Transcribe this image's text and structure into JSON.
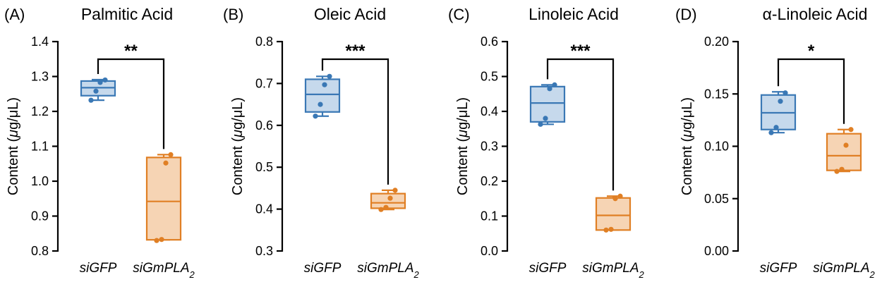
{
  "chart_data": [
    {
      "type": "box",
      "panel_label": "(A)",
      "title": "Palmitic Acid",
      "ylabel": "Content (μg/μL)",
      "ylim": [
        0.8,
        1.4
      ],
      "yticks": [
        0.8,
        0.9,
        1.0,
        1.1,
        1.2,
        1.3,
        1.4
      ],
      "ytick_labels": [
        "0.8",
        "0.9",
        "1.0",
        "1.1",
        "1.2",
        "1.3",
        "1.4"
      ],
      "categories": [
        "siGFP",
        "siGmPLA2"
      ],
      "series": [
        {
          "category": "siGFP",
          "color": "#3a78b5",
          "fill": "#c6d9ec",
          "min": 1.232,
          "q1": 1.245,
          "median": 1.268,
          "q3": 1.287,
          "max": 1.291,
          "points": [
            1.232,
            1.258,
            1.283,
            1.29
          ]
        },
        {
          "category": "siGmPLA2",
          "color": "#e07f24",
          "fill": "#f6d4b4",
          "min": 0.832,
          "q1": 0.832,
          "median": 0.942,
          "q3": 1.068,
          "max": 1.076,
          "points": [
            0.83,
            0.833,
            1.052,
            1.076
          ]
        }
      ],
      "significance": "**"
    },
    {
      "type": "box",
      "panel_label": "(B)",
      "title": "Oleic Acid",
      "ylabel": "Content (μg/μL)",
      "ylim": [
        0.3,
        0.8
      ],
      "yticks": [
        0.3,
        0.4,
        0.5,
        0.6,
        0.7,
        0.8
      ],
      "ytick_labels": [
        "0.3",
        "0.4",
        "0.5",
        "0.6",
        "0.7",
        "0.8"
      ],
      "categories": [
        "siGFP",
        "siGmPLA2"
      ],
      "series": [
        {
          "category": "siGFP",
          "color": "#3a78b5",
          "fill": "#c6d9ec",
          "min": 0.622,
          "q1": 0.632,
          "median": 0.674,
          "q3": 0.71,
          "max": 0.717,
          "points": [
            0.622,
            0.65,
            0.697,
            0.717
          ]
        },
        {
          "category": "siGmPLA2",
          "color": "#e07f24",
          "fill": "#f6d4b4",
          "min": 0.399,
          "q1": 0.402,
          "median": 0.415,
          "q3": 0.437,
          "max": 0.445,
          "points": [
            0.399,
            0.404,
            0.426,
            0.445
          ]
        }
      ],
      "significance": "***"
    },
    {
      "type": "box",
      "panel_label": "(C)",
      "title": "Linoleic Acid",
      "ylabel": "Content (μg/μL)",
      "ylim": [
        0.0,
        0.6
      ],
      "yticks": [
        0.0,
        0.1,
        0.2,
        0.3,
        0.4,
        0.5,
        0.6
      ],
      "ytick_labels": [
        "0.0",
        "0.1",
        "0.2",
        "0.3",
        "0.4",
        "0.5",
        "0.6"
      ],
      "categories": [
        "siGFP",
        "siGmPLA2"
      ],
      "series": [
        {
          "category": "siGFP",
          "color": "#3a78b5",
          "fill": "#c6d9ec",
          "min": 0.363,
          "q1": 0.37,
          "median": 0.424,
          "q3": 0.471,
          "max": 0.476,
          "points": [
            0.363,
            0.38,
            0.465,
            0.476
          ]
        },
        {
          "category": "siGmPLA2",
          "color": "#e07f24",
          "fill": "#f6d4b4",
          "min": 0.06,
          "q1": 0.06,
          "median": 0.102,
          "q3": 0.152,
          "max": 0.157,
          "points": [
            0.06,
            0.062,
            0.15,
            0.157
          ]
        }
      ],
      "significance": "***"
    },
    {
      "type": "box",
      "panel_label": "(D)",
      "title": "α-Linoleic Acid",
      "ylabel": "Content (μg/μL)",
      "ylim": [
        0.0,
        0.2
      ],
      "yticks": [
        0.0,
        0.05,
        0.1,
        0.15,
        0.2
      ],
      "ytick_labels": [
        "0.00",
        "0.05",
        "0.10",
        "0.15",
        "0.20"
      ],
      "categories": [
        "siGFP",
        "siGmPLA2"
      ],
      "series": [
        {
          "category": "siGFP",
          "color": "#3a78b5",
          "fill": "#c6d9ec",
          "min": 0.113,
          "q1": 0.116,
          "median": 0.132,
          "q3": 0.149,
          "max": 0.152,
          "points": [
            0.113,
            0.118,
            0.143,
            0.151
          ]
        },
        {
          "category": "siGmPLA2",
          "color": "#e07f24",
          "fill": "#f6d4b4",
          "min": 0.076,
          "q1": 0.077,
          "median": 0.091,
          "q3": 0.112,
          "max": 0.116,
          "points": [
            0.076,
            0.078,
            0.101,
            0.116
          ]
        }
      ],
      "significance": "*"
    }
  ]
}
